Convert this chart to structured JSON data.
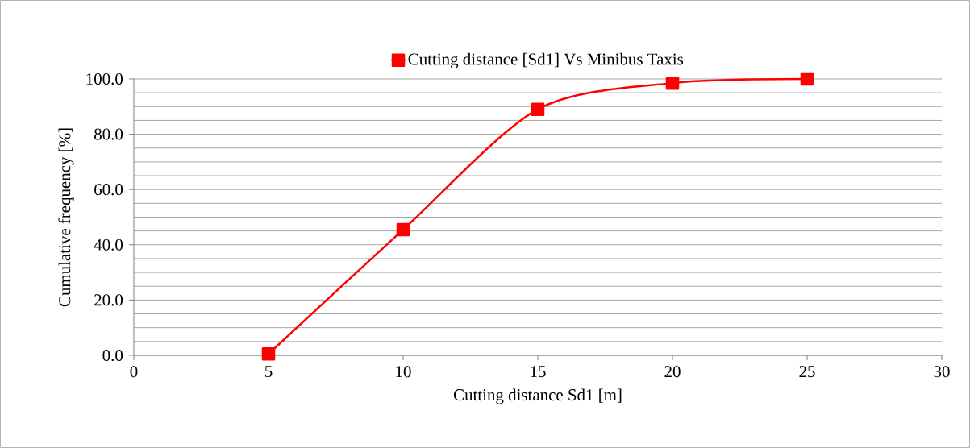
{
  "chart_data": {
    "type": "line",
    "xlabel": "Cutting distance Sd1 [m]",
    "ylabel": "Cumulative frequency [%]",
    "x": [
      5,
      10,
      15,
      20,
      25
    ],
    "series": [
      {
        "name": "Cutting distance [Sd1] Vs Minibus Taxis",
        "color": "#ff0000",
        "values": [
          0.5,
          45.5,
          89,
          98.5,
          100
        ]
      }
    ],
    "xlim": [
      0,
      30
    ],
    "xticks": [
      0,
      5,
      10,
      15,
      20,
      25,
      30
    ],
    "ylim": [
      0,
      100
    ],
    "yticks": [
      {
        "value": 0,
        "label": "0.0"
      },
      {
        "value": 20,
        "label": "20.0"
      },
      {
        "value": 40,
        "label": "40.0"
      },
      {
        "value": 60,
        "label": "60.0"
      },
      {
        "value": 80,
        "label": "80.0"
      },
      {
        "value": 100,
        "label": "100.0"
      }
    ],
    "grid": "y",
    "legend": "top",
    "marker": "square",
    "line_style": "solid"
  }
}
